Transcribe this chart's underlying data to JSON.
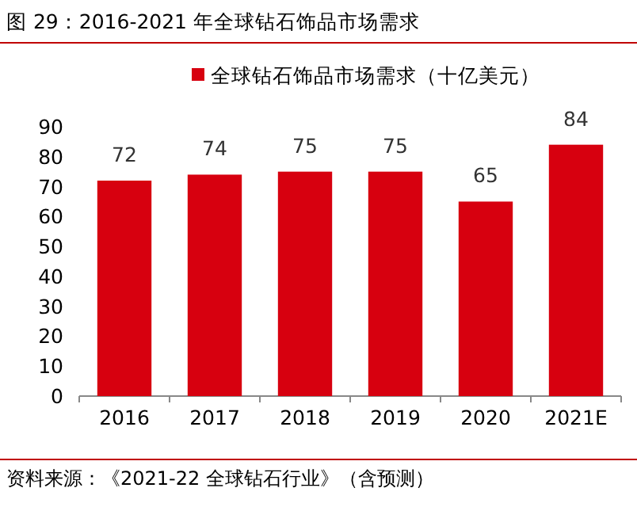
{
  "chart_data": {
    "type": "bar",
    "title": "图 29：2016-2021 年全球钻石饰品市场需求",
    "categories": [
      "2016",
      "2017",
      "2018",
      "2019",
      "2020",
      "2021E"
    ],
    "series": [
      {
        "name": "全球钻石饰品市场需求（十亿美元）",
        "color": "#d7000f",
        "values": [
          72,
          74,
          75,
          75,
          65,
          84
        ]
      }
    ],
    "ylim": [
      0,
      90
    ],
    "yticks": [
      0,
      10,
      20,
      30,
      40,
      50,
      60,
      70,
      80,
      90
    ],
    "data_labels": true,
    "legend": "top",
    "annotations": [
      "资料来源：《2021-22 全球钻石行业》（含预测）"
    ]
  }
}
